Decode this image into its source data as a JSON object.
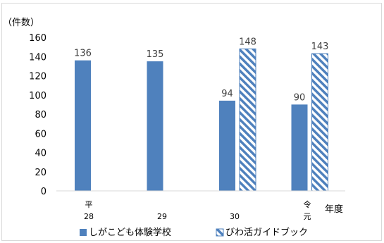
{
  "chart_data": {
    "type": "bar",
    "ylabel": "（件数）",
    "xlabel": "年度",
    "ylim": [
      0,
      160
    ],
    "yticks": [
      0,
      20,
      40,
      60,
      80,
      100,
      120,
      140,
      160
    ],
    "categories": [
      {
        "lines": [
          "平",
          "28"
        ]
      },
      {
        "lines": [
          "29"
        ]
      },
      {
        "lines": [
          "30"
        ]
      },
      {
        "lines": [
          "令",
          "元"
        ]
      }
    ],
    "series": [
      {
        "name": "しがこども体験学校",
        "values": [
          136,
          135,
          94,
          90
        ],
        "color": "#4f81bd",
        "pattern": "solid"
      },
      {
        "name": "びわ活ガイドブック",
        "values": [
          null,
          null,
          148,
          143
        ],
        "color": "#4f81bd",
        "pattern": "diagonal-stripe"
      }
    ],
    "grid": false,
    "legend": "bottom"
  }
}
